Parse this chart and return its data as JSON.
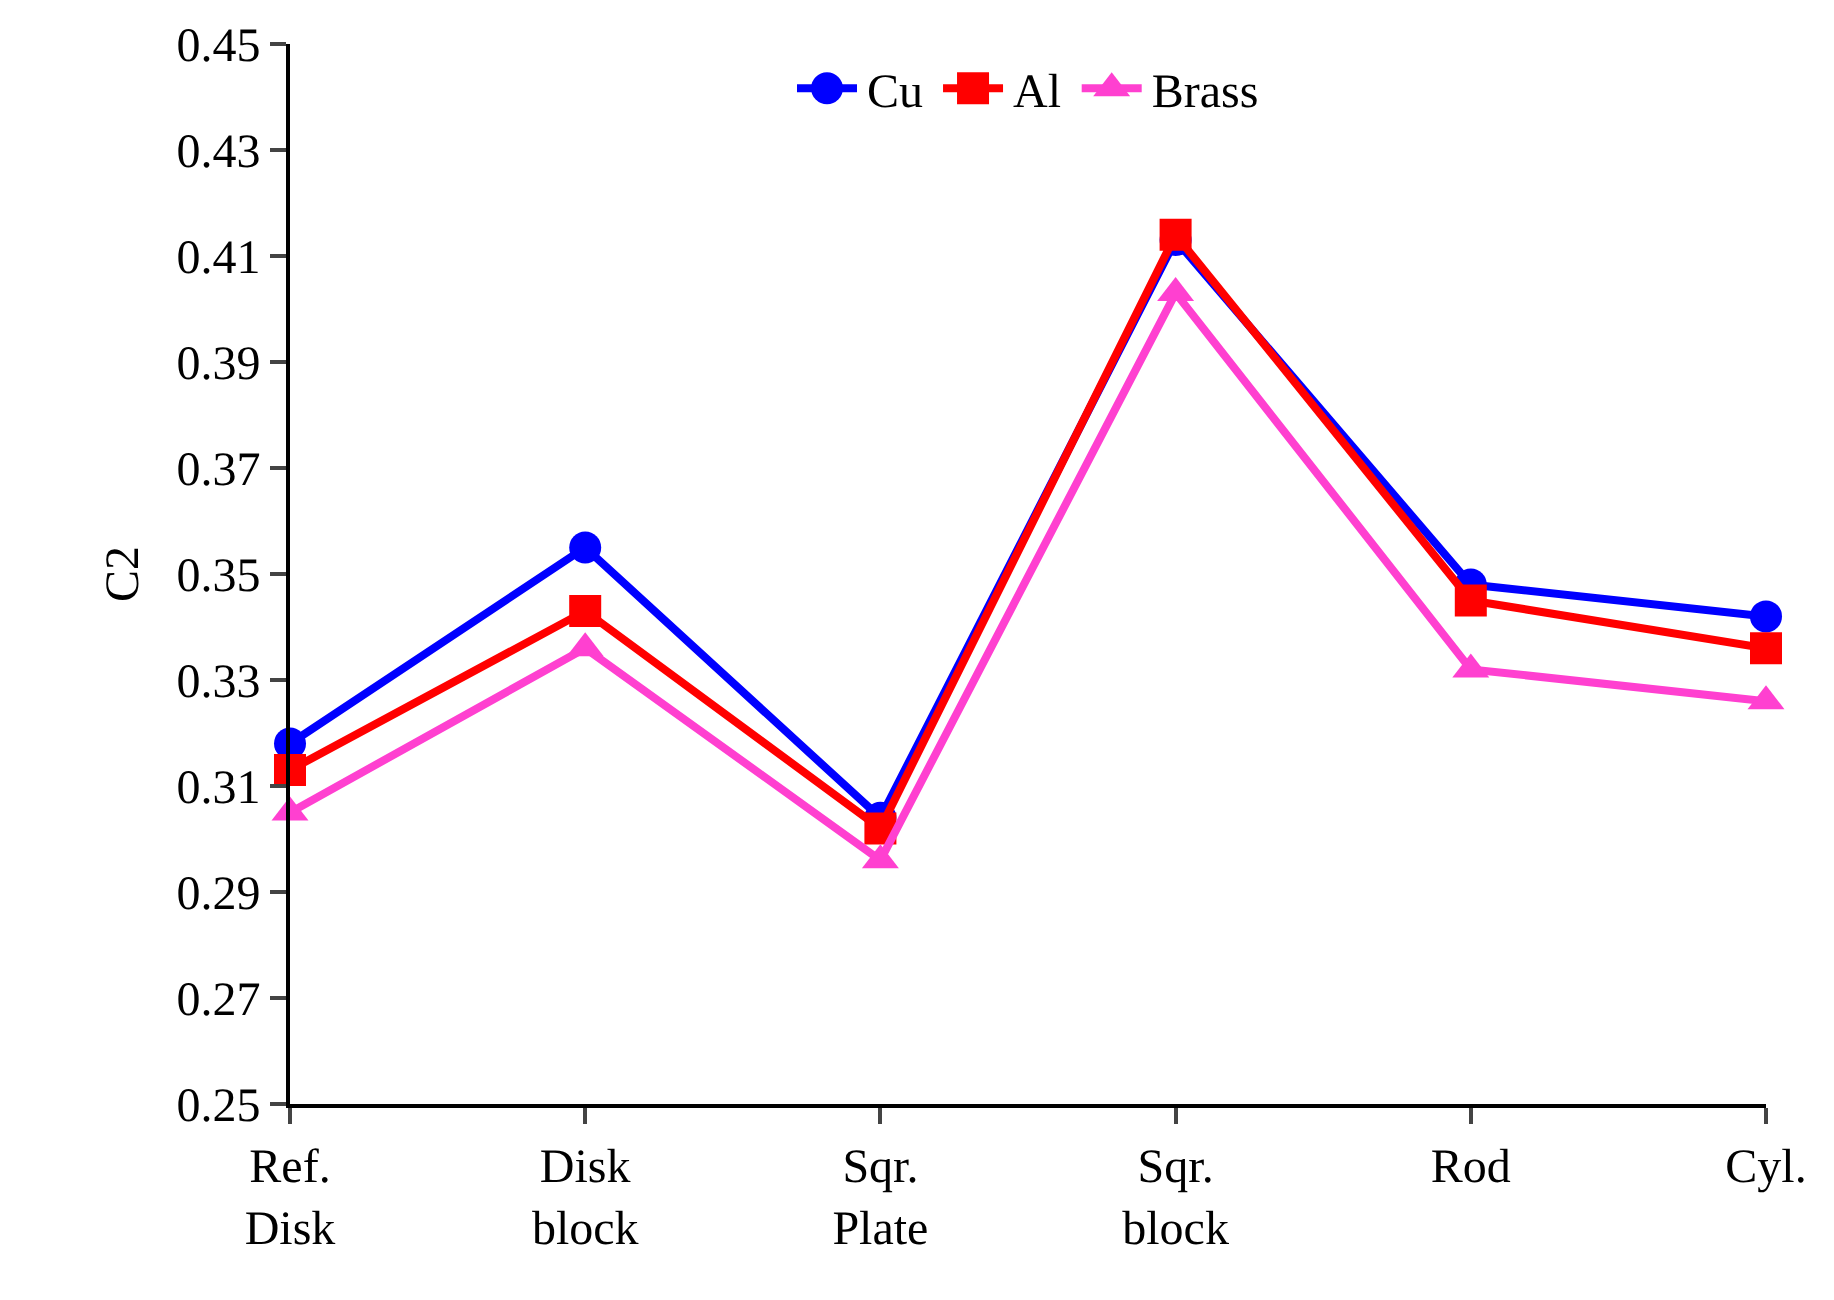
{
  "chart_data": {
    "type": "line",
    "ylabel": "C2",
    "categories": [
      "Ref.\nDisk",
      "Disk\nblock",
      "Sqr.\nPlate",
      "Sqr.\nblock",
      "Rod",
      "Cyl."
    ],
    "series": [
      {
        "name": "Cu",
        "color": "#0000ff",
        "marker": "circle",
        "values": [
          0.318,
          0.355,
          0.304,
          0.413,
          0.348,
          0.342
        ]
      },
      {
        "name": "Al",
        "color": "#ff0000",
        "marker": "square",
        "values": [
          0.313,
          0.343,
          0.302,
          0.414,
          0.345,
          0.336
        ]
      },
      {
        "name": "Brass",
        "color": "#ff40d0",
        "marker": "triangle",
        "values": [
          0.305,
          0.336,
          0.296,
          0.403,
          0.332,
          0.326
        ]
      }
    ],
    "ylim": [
      0.25,
      0.45
    ],
    "yticks": [
      0.25,
      0.27,
      0.29,
      0.31,
      0.33,
      0.35,
      0.37,
      0.39,
      0.41,
      0.43,
      0.45
    ],
    "grid": false,
    "legend": "top",
    "line_style": "solid"
  }
}
